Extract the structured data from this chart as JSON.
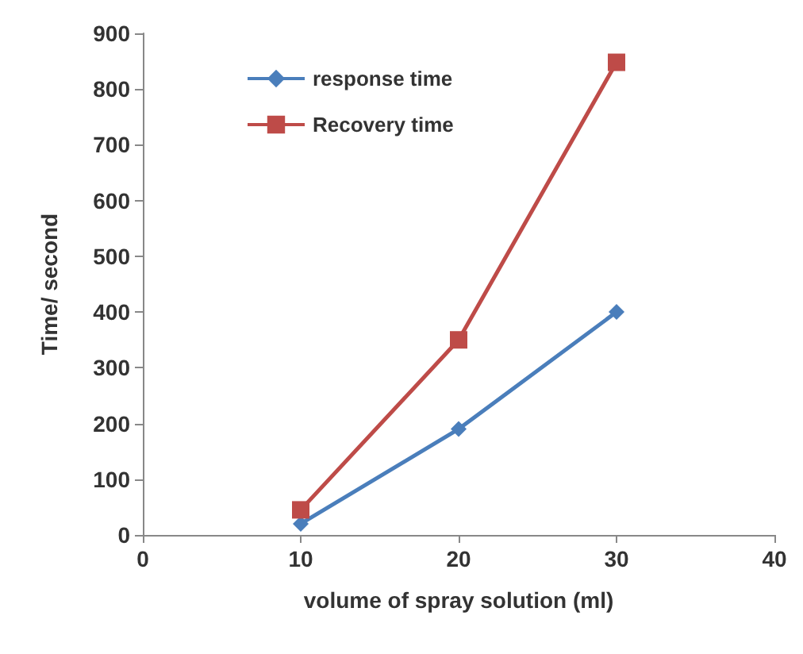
{
  "chart_data": {
    "type": "line",
    "xlabel": "volume of spray solution (ml)",
    "ylabel": "Time/ second",
    "x": [
      10,
      20,
      30
    ],
    "series": [
      {
        "name": "response time",
        "color": "#4a7ebb",
        "values": [
          20,
          190,
          400
        ],
        "marker": "diamond"
      },
      {
        "name": "Recovery time",
        "color": "#be4b48",
        "values": [
          45,
          350,
          848
        ],
        "marker": "square"
      }
    ],
    "xlim": [
      0,
      40
    ],
    "xticks": [
      0,
      10,
      20,
      30,
      40
    ],
    "ylim": [
      0,
      900
    ],
    "yticks": [
      0,
      100,
      200,
      300,
      400,
      500,
      600,
      700,
      800,
      900
    ],
    "grid": false,
    "legend": "top left"
  }
}
